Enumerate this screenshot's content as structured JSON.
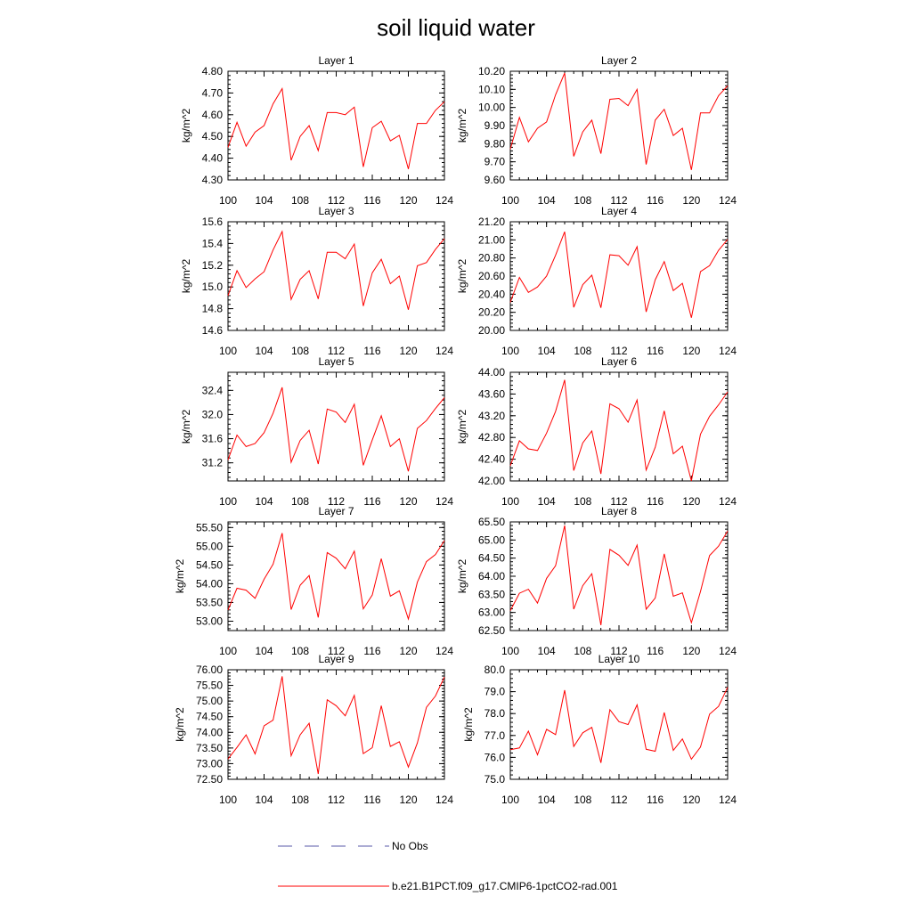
{
  "title": "soil liquid water",
  "legend": [
    {
      "label": "No Obs",
      "color": "#5a5aaa",
      "style": "dashed"
    },
    {
      "label": "b.e21.B1PCT.f09_g17.CMIP6-1pctCO2-rad.001",
      "color": "#ff0000",
      "style": "solid"
    }
  ],
  "chart_data": [
    {
      "type": "line",
      "title": "Layer 1",
      "ylabel": "kg/m^2",
      "x": [
        100,
        101,
        102,
        103,
        104,
        105,
        106,
        107,
        108,
        109,
        110,
        111,
        112,
        113,
        114,
        115,
        116,
        117,
        118,
        119,
        120,
        121,
        122,
        123,
        124
      ],
      "xlim": [
        100,
        124
      ],
      "xticks": [
        "100",
        "104",
        "108",
        "112",
        "116",
        "120",
        "124"
      ],
      "ylim": [
        4.3,
        4.8
      ],
      "yticks": [
        "4.30",
        "4.40",
        "4.50",
        "4.60",
        "4.70",
        "4.80"
      ],
      "series": [
        {
          "values": [
            4.45,
            4.565,
            4.455,
            4.52,
            4.55,
            4.65,
            4.72,
            4.39,
            4.5,
            4.55,
            4.435,
            4.61,
            4.61,
            4.6,
            4.635,
            4.36,
            4.54,
            4.57,
            4.48,
            4.505,
            4.35,
            4.56,
            4.56,
            4.62,
            4.66
          ],
          "color": "#ff0000"
        }
      ]
    },
    {
      "type": "line",
      "title": "Layer 2",
      "ylabel": "kg/m^2",
      "x": [
        100,
        101,
        102,
        103,
        104,
        105,
        106,
        107,
        108,
        109,
        110,
        111,
        112,
        113,
        114,
        115,
        116,
        117,
        118,
        119,
        120,
        121,
        122,
        123,
        124
      ],
      "xlim": [
        100,
        124
      ],
      "xticks": [
        "100",
        "104",
        "108",
        "112",
        "116",
        "120",
        "124"
      ],
      "ylim": [
        9.6,
        10.2
      ],
      "yticks": [
        "9.60",
        "9.70",
        "9.80",
        "9.90",
        "10.00",
        "10.10",
        "10.20"
      ],
      "series": [
        {
          "values": [
            9.77,
            9.945,
            9.81,
            9.885,
            9.92,
            10.07,
            10.19,
            9.73,
            9.865,
            9.93,
            9.745,
            10.045,
            10.05,
            10.01,
            10.1,
            9.685,
            9.93,
            9.99,
            9.845,
            9.885,
            9.655,
            9.97,
            9.97,
            10.065,
            10.12
          ],
          "color": "#ff0000"
        }
      ]
    },
    {
      "type": "line",
      "title": "Layer 3",
      "ylabel": "kg/m^2",
      "x": [
        100,
        101,
        102,
        103,
        104,
        105,
        106,
        107,
        108,
        109,
        110,
        111,
        112,
        113,
        114,
        115,
        116,
        117,
        118,
        119,
        120,
        121,
        122,
        123,
        124
      ],
      "xlim": [
        100,
        124
      ],
      "xticks": [
        "100",
        "104",
        "108",
        "112",
        "116",
        "120",
        "124"
      ],
      "ylim": [
        14.6,
        15.6
      ],
      "yticks": [
        "14.6",
        "14.8",
        "15.0",
        "15.2",
        "15.4",
        "15.6"
      ],
      "series": [
        {
          "values": [
            14.92,
            15.15,
            14.995,
            15.075,
            15.14,
            15.34,
            15.51,
            14.885,
            15.07,
            15.15,
            14.89,
            15.32,
            15.32,
            15.26,
            15.395,
            14.825,
            15.13,
            15.255,
            15.03,
            15.1,
            14.79,
            15.195,
            15.225,
            15.345,
            15.445
          ],
          "color": "#ff0000"
        }
      ]
    },
    {
      "type": "line",
      "title": "Layer 4",
      "ylabel": "kg/m^2",
      "x": [
        100,
        101,
        102,
        103,
        104,
        105,
        106,
        107,
        108,
        109,
        110,
        111,
        112,
        113,
        114,
        115,
        116,
        117,
        118,
        119,
        120,
        121,
        122,
        123,
        124
      ],
      "xlim": [
        100,
        124
      ],
      "xticks": [
        "100",
        "104",
        "108",
        "112",
        "116",
        "120",
        "124"
      ],
      "ylim": [
        20.0,
        21.2
      ],
      "yticks": [
        "20.00",
        "20.20",
        "20.40",
        "20.60",
        "20.80",
        "21.00",
        "21.20"
      ],
      "series": [
        {
          "values": [
            20.31,
            20.585,
            20.42,
            20.48,
            20.6,
            20.83,
            21.09,
            20.255,
            20.505,
            20.61,
            20.25,
            20.835,
            20.825,
            20.72,
            20.925,
            20.205,
            20.56,
            20.76,
            20.44,
            20.52,
            20.14,
            20.65,
            20.715,
            20.885,
            21.005
          ],
          "color": "#ff0000"
        }
      ]
    },
    {
      "type": "line",
      "title": "Layer 5",
      "ylabel": "kg/m^2",
      "x": [
        100,
        101,
        102,
        103,
        104,
        105,
        106,
        107,
        108,
        109,
        110,
        111,
        112,
        113,
        114,
        115,
        116,
        117,
        118,
        119,
        120,
        121,
        122,
        123,
        124
      ],
      "xlim": [
        100,
        124
      ],
      "xticks": [
        "100",
        "104",
        "108",
        "112",
        "116",
        "120",
        "124"
      ],
      "ylim": [
        30.9,
        32.7
      ],
      "yticks": [
        "31.2",
        "31.6",
        "32.0",
        "32.4"
      ],
      "series": [
        {
          "values": [
            31.25,
            31.66,
            31.47,
            31.52,
            31.7,
            32.02,
            32.45,
            31.21,
            31.57,
            31.74,
            31.18,
            32.09,
            32.04,
            31.87,
            32.17,
            31.16,
            31.58,
            31.98,
            31.47,
            31.6,
            31.06,
            31.77,
            31.9,
            32.1,
            32.28
          ],
          "color": "#ff0000"
        }
      ]
    },
    {
      "type": "line",
      "title": "Layer 6",
      "ylabel": "kg/m^2",
      "x": [
        100,
        101,
        102,
        103,
        104,
        105,
        106,
        107,
        108,
        109,
        110,
        111,
        112,
        113,
        114,
        115,
        116,
        117,
        118,
        119,
        120,
        121,
        122,
        123,
        124
      ],
      "xlim": [
        100,
        124
      ],
      "xticks": [
        "100",
        "104",
        "108",
        "112",
        "116",
        "120",
        "124"
      ],
      "ylim": [
        42.0,
        44.0
      ],
      "yticks": [
        "42.00",
        "42.40",
        "42.80",
        "43.20",
        "43.60",
        "44.00"
      ],
      "series": [
        {
          "values": [
            42.28,
            42.74,
            42.59,
            42.56,
            42.88,
            43.28,
            43.86,
            42.19,
            42.7,
            42.92,
            42.13,
            43.42,
            43.33,
            43.08,
            43.49,
            42.2,
            42.62,
            43.29,
            42.5,
            42.64,
            42.0,
            42.86,
            43.19,
            43.4,
            43.64
          ],
          "color": "#ff0000"
        }
      ]
    },
    {
      "type": "line",
      "title": "Layer 7",
      "ylabel": "kg/m^2",
      "x": [
        100,
        101,
        102,
        103,
        104,
        105,
        106,
        107,
        108,
        109,
        110,
        111,
        112,
        113,
        114,
        115,
        116,
        117,
        118,
        119,
        120,
        121,
        122,
        123,
        124
      ],
      "xlim": [
        100,
        124
      ],
      "xticks": [
        "100",
        "104",
        "108",
        "112",
        "116",
        "120",
        "124"
      ],
      "ylim": [
        52.75,
        55.65
      ],
      "yticks": [
        "53.00",
        "53.50",
        "54.00",
        "54.50",
        "55.00",
        "55.50"
      ],
      "series": [
        {
          "values": [
            53.3,
            53.88,
            53.83,
            53.61,
            54.12,
            54.52,
            55.35,
            53.31,
            53.96,
            54.22,
            53.1,
            54.83,
            54.68,
            54.4,
            54.87,
            53.33,
            53.7,
            54.67,
            53.67,
            53.81,
            53.06,
            54.04,
            54.59,
            54.78,
            55.15
          ],
          "color": "#ff0000"
        }
      ]
    },
    {
      "type": "line",
      "title": "Layer 8",
      "ylabel": "kg/m^2",
      "x": [
        100,
        101,
        102,
        103,
        104,
        105,
        106,
        107,
        108,
        109,
        110,
        111,
        112,
        113,
        114,
        115,
        116,
        117,
        118,
        119,
        120,
        121,
        122,
        123,
        124
      ],
      "xlim": [
        100,
        124
      ],
      "xticks": [
        "100",
        "104",
        "108",
        "112",
        "116",
        "120",
        "124"
      ],
      "ylim": [
        62.5,
        65.5
      ],
      "yticks": [
        "62.50",
        "63.00",
        "63.50",
        "64.00",
        "64.50",
        "65.00",
        "65.50"
      ],
      "series": [
        {
          "values": [
            63.05,
            63.53,
            63.64,
            63.26,
            63.94,
            64.29,
            65.4,
            63.09,
            63.74,
            64.07,
            62.65,
            64.74,
            64.58,
            64.3,
            64.86,
            63.09,
            63.4,
            64.62,
            63.45,
            63.54,
            62.72,
            63.58,
            64.57,
            64.83,
            65.25
          ],
          "color": "#ff0000"
        }
      ]
    },
    {
      "type": "line",
      "title": "Layer 9",
      "ylabel": "kg/m^2",
      "x": [
        100,
        101,
        102,
        103,
        104,
        105,
        106,
        107,
        108,
        109,
        110,
        111,
        112,
        113,
        114,
        115,
        116,
        117,
        118,
        119,
        120,
        121,
        122,
        123,
        124
      ],
      "xlim": [
        100,
        124
      ],
      "xticks": [
        "100",
        "104",
        "108",
        "112",
        "116",
        "120",
        "124"
      ],
      "ylim": [
        72.5,
        76.0
      ],
      "yticks": [
        "72.50",
        "73.00",
        "73.50",
        "74.00",
        "74.50",
        "75.00",
        "75.50",
        "76.00"
      ],
      "series": [
        {
          "values": [
            73.15,
            73.52,
            73.92,
            73.31,
            74.21,
            74.39,
            75.79,
            73.25,
            73.92,
            74.29,
            72.67,
            75.04,
            74.85,
            74.53,
            75.18,
            73.32,
            73.51,
            74.85,
            73.55,
            73.7,
            72.89,
            73.66,
            74.8,
            75.16,
            75.77
          ],
          "color": "#ff0000"
        }
      ]
    },
    {
      "type": "line",
      "title": "Layer 10",
      "ylabel": "kg/m^2",
      "x": [
        100,
        101,
        102,
        103,
        104,
        105,
        106,
        107,
        108,
        109,
        110,
        111,
        112,
        113,
        114,
        115,
        116,
        117,
        118,
        119,
        120,
        121,
        122,
        123,
        124
      ],
      "xlim": [
        100,
        124
      ],
      "xticks": [
        "100",
        "104",
        "108",
        "112",
        "116",
        "120",
        "124"
      ],
      "ylim": [
        75.0,
        80.0
      ],
      "yticks": [
        "75.0",
        "76.0",
        "77.0",
        "78.0",
        "79.0",
        "80.0"
      ],
      "series": [
        {
          "values": [
            76.35,
            76.43,
            77.2,
            76.12,
            77.28,
            77.04,
            79.07,
            76.5,
            77.12,
            77.37,
            75.75,
            78.18,
            77.63,
            77.5,
            78.4,
            76.37,
            76.28,
            78.05,
            76.32,
            76.84,
            75.92,
            76.47,
            77.97,
            78.33,
            79.2
          ],
          "color": "#ff0000"
        }
      ]
    }
  ]
}
